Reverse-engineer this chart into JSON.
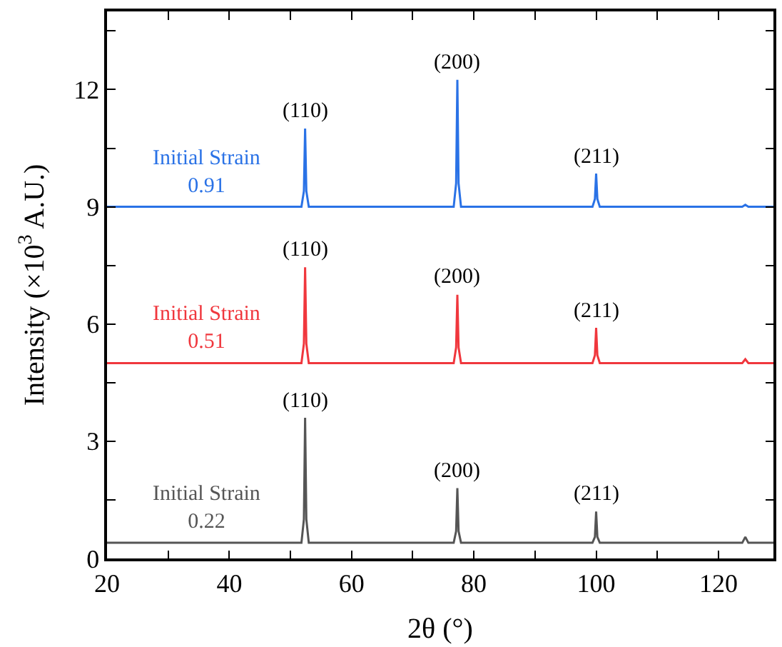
{
  "chart_data": {
    "type": "line",
    "xlabel": "2θ (°)",
    "ylabel": "Intensity (×10$^{3}$ A.U.)",
    "xlim": [
      20,
      129
    ],
    "ylim": [
      0,
      14
    ],
    "xticks": [
      20,
      {
        "value": 30,
        "label": null
      },
      40,
      {
        "value": 50,
        "label": null
      },
      60,
      {
        "value": 70,
        "label": null
      },
      80,
      {
        "value": 90,
        "label": null
      },
      100,
      {
        "value": 110,
        "label": null
      },
      120
    ],
    "yticks": [
      0,
      {
        "value": 1.5,
        "label": null
      },
      3,
      {
        "value": 4.5,
        "label": null
      },
      6,
      {
        "value": 7.5,
        "label": null
      },
      9,
      {
        "value": 10.5,
        "label": null
      },
      12,
      {
        "value": 13.5,
        "label": null
      }
    ],
    "legend": false,
    "marker": "none",
    "line_style": "solid",
    "series": [
      {
        "name": "Initial Strain 0.91",
        "color": "#2a72e6",
        "x": [
          20,
          51.8,
          52.2,
          52.4,
          52.6,
          53.0,
          76.7,
          77.1,
          77.3,
          77.5,
          77.9,
          99.4,
          99.8,
          100.0,
          100.2,
          100.6,
          123.9,
          124.4,
          124.9,
          129
        ],
        "values": [
          9.0,
          9.0,
          9.4,
          11.0,
          9.4,
          9.0,
          9.0,
          9.6,
          12.25,
          9.6,
          9.0,
          9.0,
          9.2,
          9.85,
          9.2,
          9.0,
          9.0,
          9.05,
          9.0,
          9.0
        ]
      },
      {
        "name": "Initial Strain 0.51",
        "color": "#f0373d",
        "x": [
          20,
          51.8,
          52.2,
          52.4,
          52.6,
          53.0,
          76.7,
          77.1,
          77.3,
          77.5,
          77.9,
          99.4,
          99.8,
          100.0,
          100.2,
          100.6,
          123.9,
          124.4,
          124.9,
          129
        ],
        "values": [
          5.0,
          5.0,
          5.5,
          7.45,
          5.5,
          5.0,
          5.0,
          5.4,
          6.75,
          5.4,
          5.0,
          5.0,
          5.2,
          5.9,
          5.2,
          5.0,
          5.0,
          5.1,
          5.0,
          5.0
        ]
      },
      {
        "name": "Initial Strain 0.22",
        "color": "#555555",
        "x": [
          20,
          51.8,
          52.2,
          52.4,
          52.6,
          53.0,
          76.7,
          77.1,
          77.3,
          77.5,
          77.9,
          99.4,
          99.8,
          100.0,
          100.2,
          100.6,
          123.9,
          124.4,
          124.9,
          129
        ],
        "values": [
          0.4,
          0.4,
          1.0,
          3.6,
          1.0,
          0.4,
          0.4,
          0.7,
          1.8,
          0.7,
          0.4,
          0.4,
          0.55,
          1.2,
          0.55,
          0.4,
          0.4,
          0.55,
          0.4,
          0.4
        ]
      }
    ],
    "annotations": [
      {
        "text": "(110)",
        "x": 52.4,
        "y": 11.0
      },
      {
        "text": "(200)",
        "x": 77.3,
        "y": 12.25
      },
      {
        "text": "(211)",
        "x": 100.0,
        "y": 9.85
      },
      {
        "text": "(110)",
        "x": 52.4,
        "y": 7.45
      },
      {
        "text": "(200)",
        "x": 77.3,
        "y": 6.75
      },
      {
        "text": "(211)",
        "x": 100.0,
        "y": 5.9
      },
      {
        "text": "(110)",
        "x": 52.4,
        "y": 3.6
      },
      {
        "text": "(200)",
        "x": 77.3,
        "y": 1.8
      },
      {
        "text": "(211)",
        "x": 100.0,
        "y": 1.2
      }
    ]
  }
}
